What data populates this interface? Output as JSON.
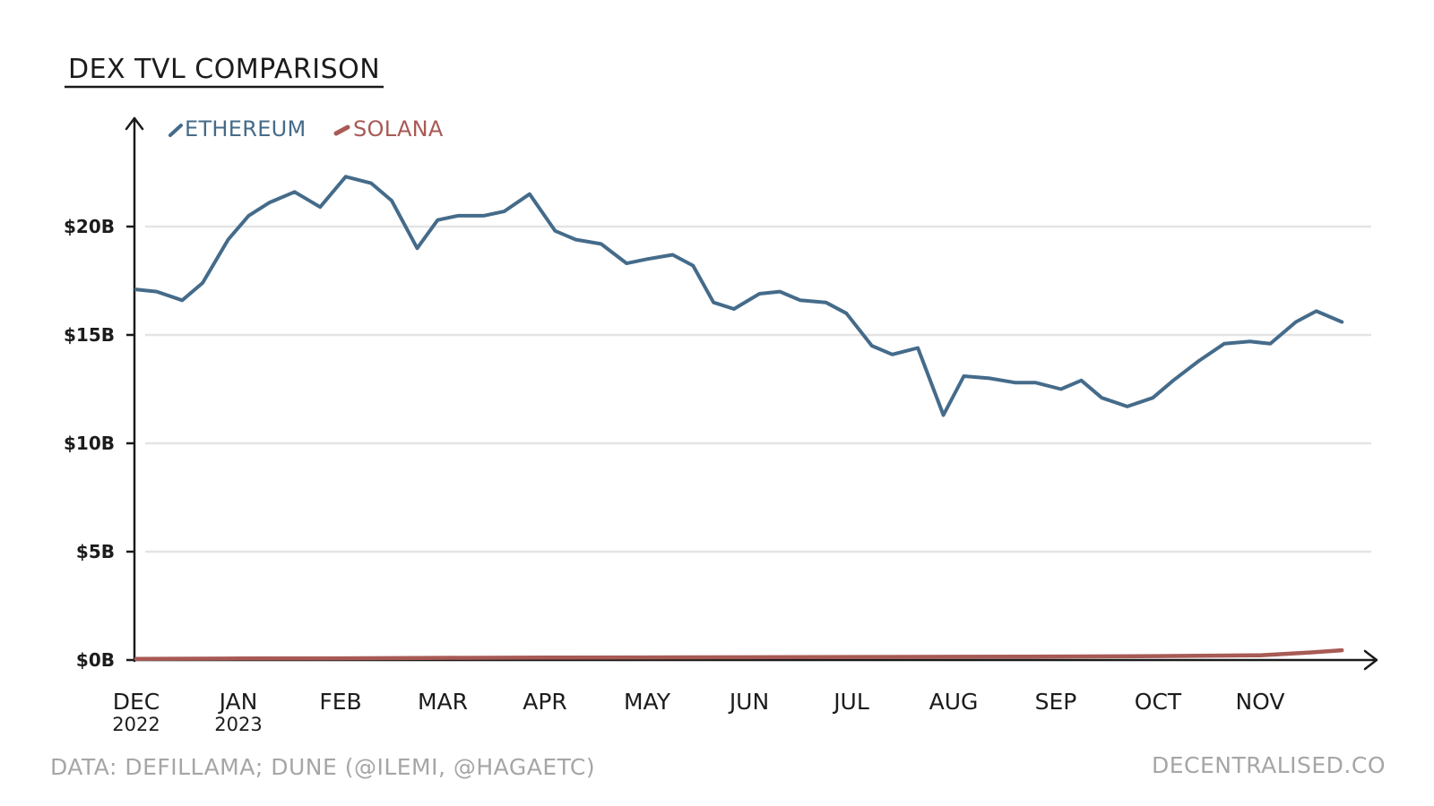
{
  "chart_data": {
    "type": "line",
    "title": "DEX TVL COMPARISON",
    "xlabel": "",
    "ylabel": "",
    "ylim": [
      0,
      25
    ],
    "y_ticks": [
      {
        "value": 0,
        "label": "$0B"
      },
      {
        "value": 5,
        "label": "$5B"
      },
      {
        "value": 10,
        "label": "$10B"
      },
      {
        "value": 15,
        "label": "$15B"
      },
      {
        "value": 20,
        "label": "$20B"
      }
    ],
    "x_ticks": [
      {
        "month": 0,
        "label": "DEC",
        "sub": "2022"
      },
      {
        "month": 1,
        "label": "JAN",
        "sub": "2023"
      },
      {
        "month": 2,
        "label": "FEB",
        "sub": ""
      },
      {
        "month": 3,
        "label": "MAR",
        "sub": ""
      },
      {
        "month": 4,
        "label": "APR",
        "sub": ""
      },
      {
        "month": 5,
        "label": "MAY",
        "sub": ""
      },
      {
        "month": 6,
        "label": "JUN",
        "sub": ""
      },
      {
        "month": 7,
        "label": "JUL",
        "sub": ""
      },
      {
        "month": 8,
        "label": "AUG",
        "sub": ""
      },
      {
        "month": 9,
        "label": "SEP",
        "sub": ""
      },
      {
        "month": 10,
        "label": "OCT",
        "sub": ""
      },
      {
        "month": 11,
        "label": "NOV",
        "sub": ""
      }
    ],
    "grid": true,
    "legend_placement": "top-left",
    "series": [
      {
        "name": "ETHEREUM",
        "color": "#456b8a",
        "points": [
          [
            0.0,
            17.1
          ],
          [
            0.2,
            17.0
          ],
          [
            0.45,
            16.6
          ],
          [
            0.65,
            17.4
          ],
          [
            0.9,
            19.4
          ],
          [
            1.1,
            20.5
          ],
          [
            1.3,
            21.1
          ],
          [
            1.55,
            21.6
          ],
          [
            1.8,
            20.9
          ],
          [
            2.05,
            22.3
          ],
          [
            2.3,
            22.0
          ],
          [
            2.5,
            21.2
          ],
          [
            2.75,
            19.0
          ],
          [
            2.95,
            20.3
          ],
          [
            3.15,
            20.5
          ],
          [
            3.4,
            20.5
          ],
          [
            3.6,
            20.7
          ],
          [
            3.85,
            21.5
          ],
          [
            4.1,
            19.8
          ],
          [
            4.3,
            19.4
          ],
          [
            4.55,
            19.2
          ],
          [
            4.8,
            18.3
          ],
          [
            5.0,
            18.5
          ],
          [
            5.25,
            18.7
          ],
          [
            5.45,
            18.2
          ],
          [
            5.65,
            16.5
          ],
          [
            5.85,
            16.2
          ],
          [
            6.1,
            16.9
          ],
          [
            6.3,
            17.0
          ],
          [
            6.5,
            16.6
          ],
          [
            6.75,
            16.5
          ],
          [
            6.95,
            16.0
          ],
          [
            7.2,
            14.5
          ],
          [
            7.4,
            14.1
          ],
          [
            7.65,
            14.4
          ],
          [
            7.9,
            11.3
          ],
          [
            8.1,
            13.1
          ],
          [
            8.35,
            13.0
          ],
          [
            8.6,
            12.8
          ],
          [
            8.8,
            12.8
          ],
          [
            9.05,
            12.5
          ],
          [
            9.25,
            12.9
          ],
          [
            9.45,
            12.1
          ],
          [
            9.7,
            11.7
          ],
          [
            9.95,
            12.1
          ],
          [
            10.15,
            12.9
          ],
          [
            10.4,
            13.8
          ],
          [
            10.65,
            14.6
          ],
          [
            10.9,
            14.7
          ],
          [
            11.1,
            14.6
          ],
          [
            11.35,
            15.6
          ],
          [
            11.55,
            16.1
          ],
          [
            11.8,
            15.6
          ]
        ]
      },
      {
        "name": "SOLANA",
        "color": "#a85a55",
        "points": [
          [
            0.0,
            0.05
          ],
          [
            1.0,
            0.07
          ],
          [
            2.0,
            0.08
          ],
          [
            3.0,
            0.1
          ],
          [
            4.0,
            0.11
          ],
          [
            5.0,
            0.12
          ],
          [
            6.0,
            0.13
          ],
          [
            7.0,
            0.14
          ],
          [
            8.0,
            0.15
          ],
          [
            9.0,
            0.16
          ],
          [
            10.0,
            0.18
          ],
          [
            11.0,
            0.22
          ],
          [
            11.5,
            0.35
          ],
          [
            11.8,
            0.45
          ]
        ]
      }
    ]
  },
  "footer": {
    "source": "DATA: DEFILLAMA; DUNE (@ILEMI, @HAGAETC)",
    "brand": "DECENTRALISED.CO"
  }
}
